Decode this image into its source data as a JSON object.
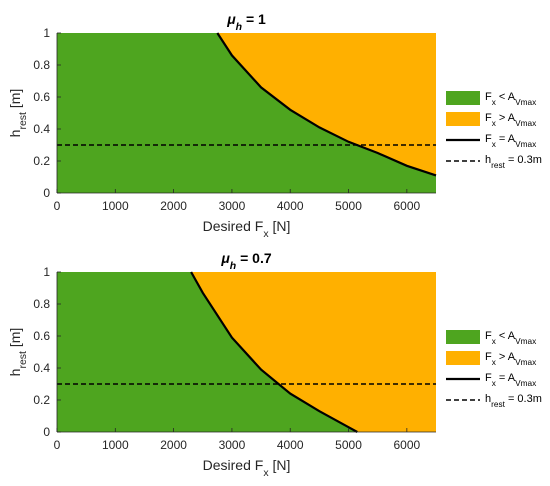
{
  "chart_data": [
    {
      "type": "area",
      "title_sym": "μ",
      "title_sub": "h",
      "title_rest": " = 1",
      "xlabel_main": "Desired F",
      "xlabel_sub": "x",
      "xlabel_unit": " [N]",
      "ylabel_main": "h",
      "ylabel_sub": "rest",
      "ylabel_unit": " [m]",
      "xlim": [
        0,
        6500
      ],
      "ylim": [
        0,
        1
      ],
      "xticks": [
        0,
        1000,
        2000,
        3000,
        4000,
        5000,
        6000
      ],
      "yticks": [
        0,
        0.2,
        0.4,
        0.6,
        0.8,
        1
      ],
      "xtick_labels": [
        "0",
        "1000",
        "2000",
        "3000",
        "4000",
        "5000",
        "6000"
      ],
      "ytick_labels": [
        "0",
        "0.2",
        "0.4",
        "0.6",
        "0.8",
        "1"
      ],
      "boundary": {
        "x": [
          2750,
          3000,
          3500,
          4000,
          4500,
          5000,
          5500,
          6000,
          6500
        ],
        "y": [
          1.0,
          0.86,
          0.66,
          0.52,
          0.41,
          0.32,
          0.25,
          0.17,
          0.11
        ]
      },
      "threshold": 0.3,
      "colors": {
        "below": "#4ea51f",
        "above": "#ffb000",
        "boundary": "#000000"
      },
      "legend": [
        {
          "kind": "patch",
          "color": "#4ea51f",
          "main": "F",
          "sub": "x",
          "op": " < A",
          "sub2": "Vmax",
          "tail": ""
        },
        {
          "kind": "patch",
          "color": "#ffb000",
          "main": "F",
          "sub": "x",
          "op": " > A",
          "sub2": "Vmax",
          "tail": ""
        },
        {
          "kind": "solid",
          "color": "#000000",
          "main": "F",
          "sub": "x",
          "op": " = A",
          "sub2": "Vmax",
          "tail": ""
        },
        {
          "kind": "dashed",
          "color": "#000000",
          "main": "h",
          "sub": "rest",
          "op": " = 0.3m",
          "sub2": "",
          "tail": ""
        }
      ]
    },
    {
      "type": "area",
      "title_sym": "μ",
      "title_sub": "h",
      "title_rest": " = 0.7",
      "xlabel_main": "Desired F",
      "xlabel_sub": "x",
      "xlabel_unit": " [N]",
      "ylabel_main": "h",
      "ylabel_sub": "rest",
      "ylabel_unit": " [m]",
      "xlim": [
        0,
        6500
      ],
      "ylim": [
        0,
        1
      ],
      "xticks": [
        0,
        1000,
        2000,
        3000,
        4000,
        5000,
        6000
      ],
      "yticks": [
        0,
        0.2,
        0.4,
        0.6,
        0.8,
        1
      ],
      "xtick_labels": [
        "0",
        "1000",
        "2000",
        "3000",
        "4000",
        "5000",
        "6000"
      ],
      "ytick_labels": [
        "0",
        "0.2",
        "0.4",
        "0.6",
        "0.8",
        "1"
      ],
      "boundary": {
        "x": [
          2300,
          2500,
          3000,
          3500,
          4000,
          4500,
          5000,
          5150
        ],
        "y": [
          1.0,
          0.87,
          0.59,
          0.39,
          0.24,
          0.13,
          0.03,
          0.0
        ]
      },
      "threshold": 0.3,
      "colors": {
        "below": "#4ea51f",
        "above": "#ffb000",
        "boundary": "#000000"
      },
      "legend": [
        {
          "kind": "patch",
          "color": "#4ea51f",
          "main": "F",
          "sub": "x",
          "op": " < A",
          "sub2": "Vmax",
          "tail": ""
        },
        {
          "kind": "patch",
          "color": "#ffb000",
          "main": "F",
          "sub": "x",
          "op": " > A",
          "sub2": "Vmax",
          "tail": ""
        },
        {
          "kind": "solid",
          "color": "#000000",
          "main": "F",
          "sub": "x",
          "op": " = A",
          "sub2": "Vmax",
          "tail": ""
        },
        {
          "kind": "dashed",
          "color": "#000000",
          "main": "h",
          "sub": "rest",
          "op": " = 0.3m",
          "sub2": "",
          "tail": ""
        }
      ]
    }
  ]
}
